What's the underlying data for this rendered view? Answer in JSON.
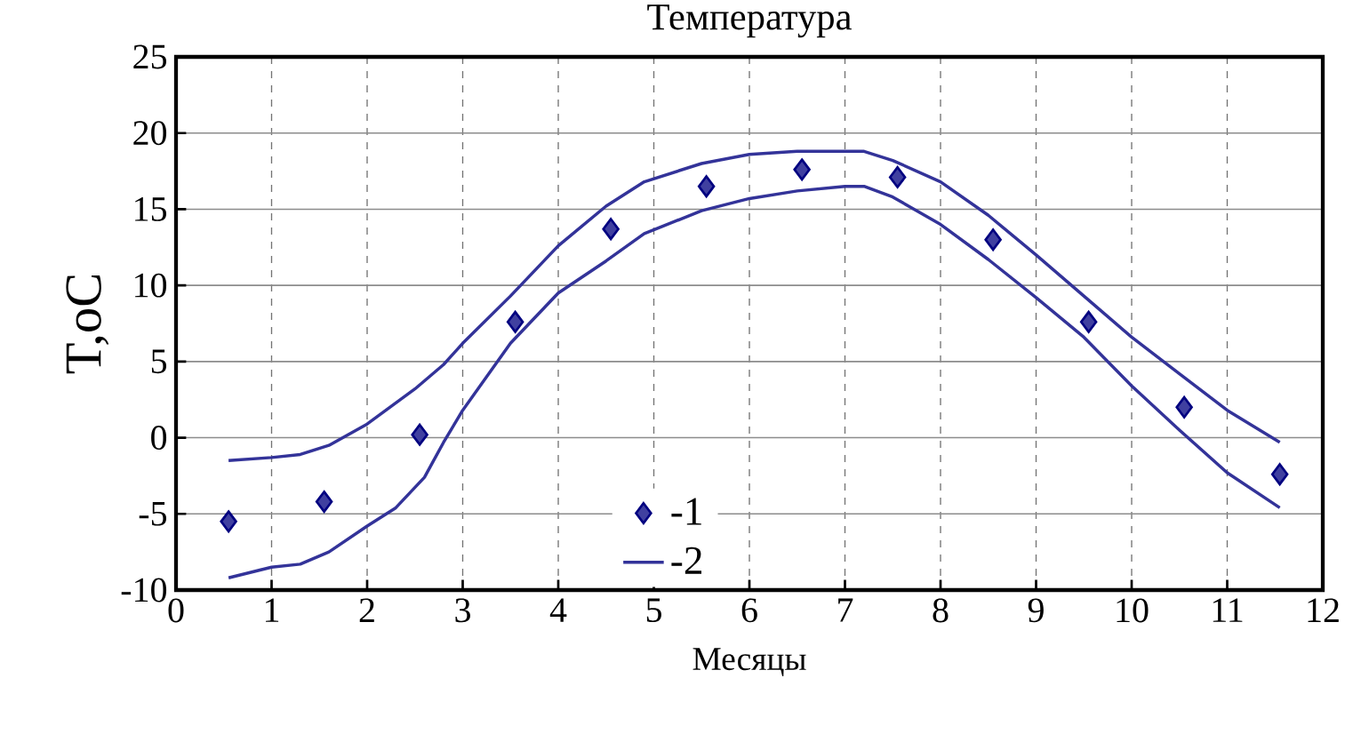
{
  "chart_data": {
    "type": "line",
    "title": "Температура",
    "xlabel": "Месяцы",
    "ylabel": "T,oC",
    "xlim": [
      0,
      12
    ],
    "xticks": [
      0,
      1,
      2,
      3,
      4,
      5,
      6,
      7,
      8,
      9,
      10,
      11,
      12
    ],
    "ylim": [
      -10,
      25
    ],
    "yticks": [
      -10,
      -5,
      0,
      5,
      10,
      15,
      20,
      25
    ],
    "grid": true,
    "legend": "bottom",
    "series": [
      {
        "name": "-1",
        "type": "scatter",
        "marker": "diamond",
        "color": "#000080",
        "x": [
          0.55,
          1.55,
          2.55,
          3.55,
          4.55,
          5.55,
          6.55,
          7.55,
          8.55,
          9.55,
          10.55,
          11.55
        ],
        "values": [
          -5.5,
          -4.2,
          0.2,
          7.6,
          13.7,
          16.5,
          17.6,
          17.1,
          13,
          7.6,
          2,
          -2.4
        ]
      },
      {
        "name": "-2",
        "color": "#333399",
        "x": [
          0.55,
          1,
          1.3,
          1.6,
          2,
          2.5,
          2.8,
          3,
          3.5,
          4,
          4.5,
          4.9,
          5.5,
          6,
          6.5,
          7.2,
          7.5,
          8,
          8.5,
          9,
          9.5,
          10,
          10.5,
          11,
          11.55
        ],
        "values": [
          -1.5,
          -1.3,
          -1.1,
          -0.5,
          0.9,
          3.2,
          4.8,
          6.2,
          9.3,
          12.6,
          15.2,
          16.8,
          18,
          18.6,
          18.8,
          18.8,
          18.2,
          16.8,
          14.6,
          12,
          9.3,
          6.6,
          4.2,
          1.8,
          -0.3
        ]
      },
      {
        "color": "#333399",
        "x": [
          0.55,
          1,
          1.3,
          1.6,
          2,
          2.3,
          2.6,
          2.8,
          3,
          3.5,
          4,
          4.5,
          4.9,
          5.5,
          6,
          6.5,
          7,
          7.2,
          7.5,
          8,
          8.5,
          9,
          9.5,
          10,
          10.5,
          11,
          11.55
        ],
        "values": [
          -9.2,
          -8.5,
          -8.3,
          -7.5,
          -5.8,
          -4.6,
          -2.6,
          -0.3,
          1.8,
          6.2,
          9.5,
          11.6,
          13.4,
          14.9,
          15.7,
          16.2,
          16.5,
          16.5,
          15.8,
          14,
          11.7,
          9.2,
          6.6,
          3.4,
          0.5,
          -2.3,
          -4.6
        ]
      }
    ]
  }
}
